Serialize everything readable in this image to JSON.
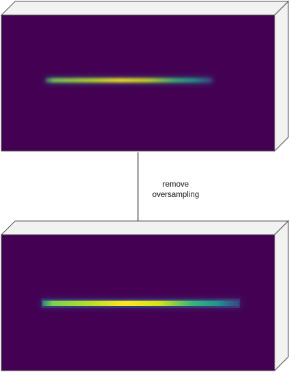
{
  "diagram": {
    "type": "process-flow",
    "colors": {
      "background": "#ffffff",
      "volume_face": "#440154",
      "volume_side": "#f2f2f2",
      "volume_edge": "#4d4d4d",
      "arrow": "#333333",
      "signal_low": "#31688e",
      "signal_mid": "#21918c",
      "signal_high": "#35b779",
      "signal_peak": "#fde725"
    },
    "nodes": [
      {
        "id": "oversampled-volume",
        "kind": "3d-image-volume",
        "content": "viridis-heatmap-line"
      },
      {
        "id": "downsampled-volume",
        "kind": "3d-image-volume",
        "content": "viridis-heatmap-line"
      }
    ],
    "edge": {
      "from": "oversampled-volume",
      "to": "downsampled-volume",
      "label_lines": [
        "remove",
        "oversampling"
      ]
    }
  }
}
